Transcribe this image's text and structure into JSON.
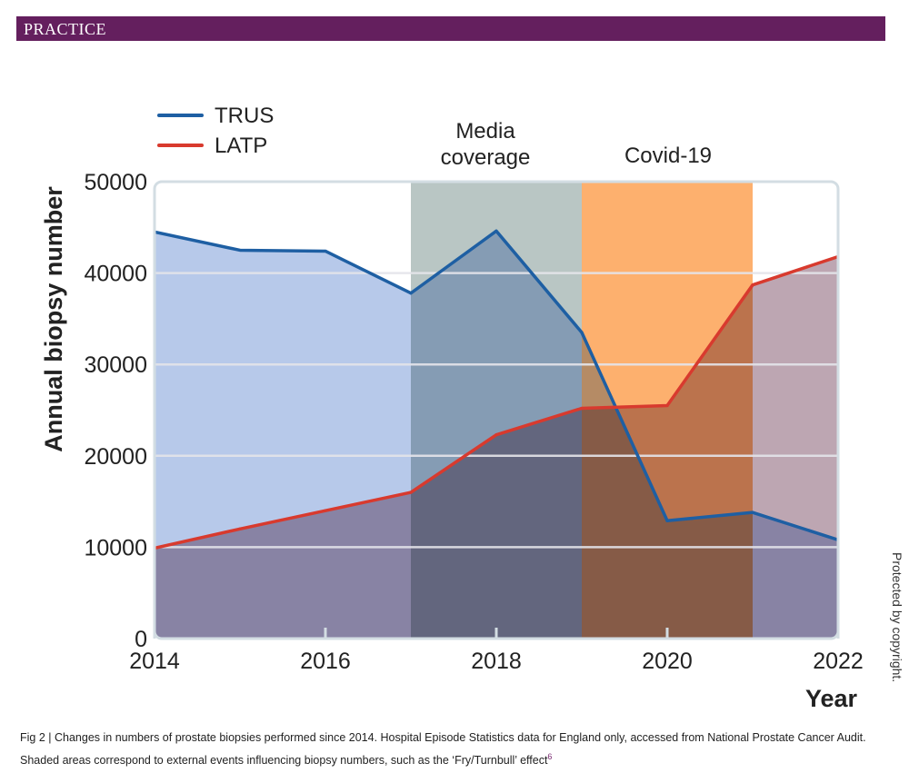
{
  "header": {
    "section": "PRACTICE"
  },
  "chart_data": {
    "type": "line",
    "title": "",
    "xlabel": "Year",
    "ylabel": "Annual biopsy number",
    "xlim": [
      2014,
      2022
    ],
    "ylim": [
      0,
      50000
    ],
    "x_ticks": [
      2014,
      2016,
      2018,
      2020,
      2022
    ],
    "y_ticks": [
      0,
      10000,
      20000,
      30000,
      40000,
      50000
    ],
    "grid": true,
    "legend_position": "top-left",
    "x": [
      2014,
      2015,
      2016,
      2017,
      2018,
      2019,
      2020,
      2021,
      2022
    ],
    "series": [
      {
        "name": "TRUS",
        "color": "#1e5fa3",
        "fill": "#aabfe6",
        "values": [
          44500,
          42500,
          42400,
          37800,
          44600,
          33500,
          12900,
          13800,
          10800
        ]
      },
      {
        "name": "LATP",
        "color": "#d83a2e",
        "fill": "#b297a5",
        "values": [
          9900,
          12000,
          14000,
          16000,
          22300,
          25200,
          25500,
          38700,
          41800
        ]
      }
    ],
    "shaded_regions": [
      {
        "label_lines": [
          "Media",
          "coverage"
        ],
        "x_start": 2017,
        "x_end": 2019,
        "color": "#b9c6c4"
      },
      {
        "label_lines": [
          "Covid-19"
        ],
        "x_start": 2019,
        "x_end": 2021,
        "color": "#fdb06e"
      }
    ]
  },
  "caption": {
    "text": "Fig 2 | Changes in numbers of prostate biopsies performed since 2014. Hospital Episode Statistics data for England only, accessed from National Prostate Cancer Audit. Shaded areas correspond to external events influencing biopsy numbers, such as the ‘Fry/Turnbull’ effect",
    "ref": "6"
  },
  "watermark": "Protected by copyright."
}
